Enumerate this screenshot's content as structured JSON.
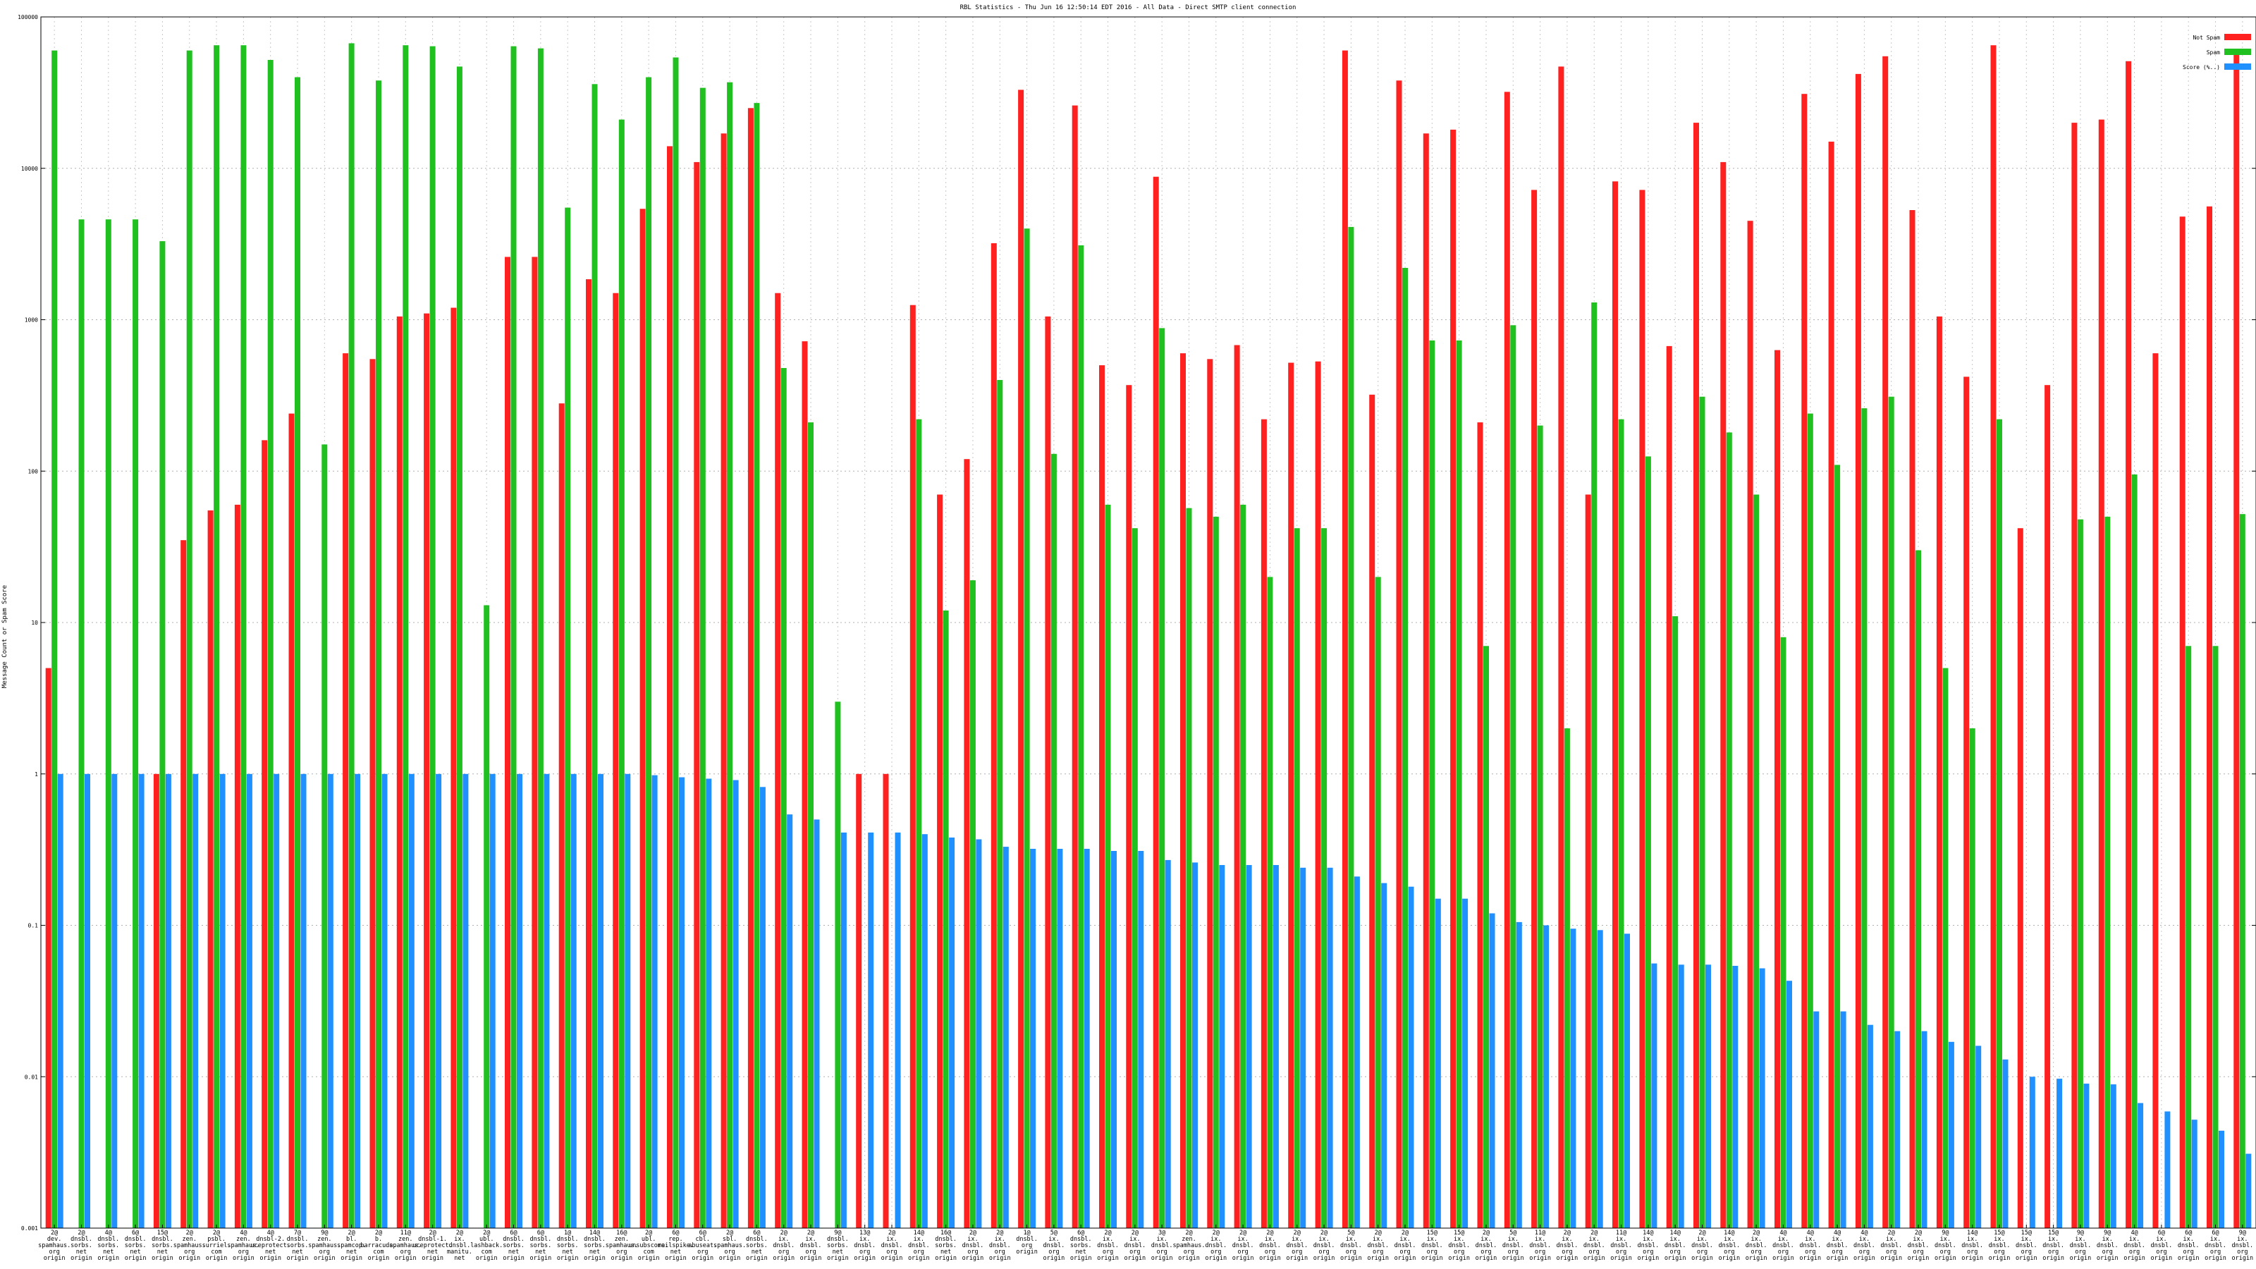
{
  "chart_data": {
    "type": "bar",
    "title": "RBL Statistics - Thu Jun 16 12:50:14 EDT 2016 - All Data - Direct SMTP client connection",
    "ylabel": "Message Count or Spam Score",
    "xlabel": "",
    "yscale": "log",
    "ylim": [
      0.001,
      100000
    ],
    "y_ticks": [
      "0.001",
      "0.01",
      "0.1",
      "1",
      "10",
      "100",
      "1000",
      "10000",
      "100000"
    ],
    "grid": true,
    "legend_position": "top-right",
    "colors": {
      "not_spam": "#ff2020",
      "spam": "#20c020",
      "score": "#2090ff"
    },
    "series": [
      {
        "name": "Not Spam",
        "values": [
          5,
          null,
          null,
          null,
          1,
          35,
          55,
          60,
          160,
          240,
          null,
          600,
          550,
          1050,
          1100,
          1200,
          null,
          2600,
          2600,
          280,
          1850,
          1500,
          5400,
          14000,
          11000,
          17000,
          25000,
          1500,
          720,
          null,
          1,
          1,
          1250,
          70,
          120,
          3200,
          33000,
          1050,
          26000,
          500,
          370,
          8800,
          600,
          550,
          680,
          220,
          520,
          530,
          60000,
          320,
          38000,
          17000,
          18000,
          210,
          32000,
          7200,
          47000,
          70,
          8200,
          7200,
          670,
          20000,
          11000,
          4500,
          630,
          31000,
          15000,
          42000,
          55000,
          5300,
          1050,
          420,
          65000,
          42,
          370,
          20000,
          21000,
          51000,
          600,
          4800,
          5600,
          60000
        ],
        "default_value": 0.001
      },
      {
        "name": "Spam",
        "values": [
          60000,
          4600,
          4600,
          4600,
          3300,
          60000,
          65000,
          65000,
          52000,
          40000,
          150,
          67000,
          38000,
          65000,
          64000,
          47000,
          13,
          64000,
          62000,
          5500,
          36000,
          21000,
          40000,
          54000,
          34000,
          37000,
          27000,
          480,
          210,
          3,
          null,
          null,
          220,
          12,
          19,
          400,
          4000,
          130,
          3100,
          60,
          42,
          880,
          57,
          50,
          60,
          20,
          42,
          42,
          4100,
          20,
          2200,
          730,
          730,
          7,
          920,
          200,
          2,
          1300,
          220,
          125,
          11,
          310,
          180,
          70,
          8,
          240,
          110,
          260,
          310,
          30,
          5,
          2,
          220,
          null,
          null,
          48,
          50,
          95,
          null,
          7,
          7,
          52
        ]
      },
      {
        "name": "Score (%..)",
        "values": [
          1,
          1,
          1,
          1,
          1,
          1,
          1,
          1,
          1,
          1,
          1,
          1,
          1,
          1,
          1,
          1,
          1,
          1,
          1,
          1,
          1,
          1,
          0.98,
          0.95,
          0.93,
          0.91,
          0.82,
          0.54,
          0.5,
          0.41,
          0.41,
          0.41,
          0.4,
          0.38,
          0.37,
          0.33,
          0.32,
          0.32,
          0.32,
          0.31,
          0.31,
          0.27,
          0.26,
          0.25,
          0.25,
          0.25,
          0.24,
          0.24,
          0.21,
          0.19,
          0.18,
          0.15,
          0.15,
          0.12,
          0.105,
          0.1,
          0.095,
          0.093,
          0.088,
          0.056,
          0.055,
          0.055,
          0.054,
          0.052,
          0.043,
          0.027,
          0.027,
          0.022,
          0.02,
          0.02,
          0.017,
          0.016,
          0.013,
          0.01,
          0.0097,
          0.009,
          0.0089,
          0.0067,
          0.0059,
          0.0052,
          0.0044,
          0.0031
        ]
      }
    ],
    "categories": [
      [
        "2@",
        "dev.",
        "spamhaus.",
        "org",
        "origin"
      ],
      [
        "2@",
        "dnsbl.",
        "sorbs.",
        "net",
        "origin"
      ],
      [
        "4@",
        "dnsbl.",
        "sorbs.",
        "net",
        "origin"
      ],
      [
        "6@",
        "dnsbl.",
        "sorbs.",
        "net",
        "origin"
      ],
      [
        "15@",
        "dnsbl.",
        "sorbs.",
        "net",
        "origin"
      ],
      [
        "2@",
        "zen.",
        "spamhaus.",
        "org",
        "origin"
      ],
      [
        "2@",
        "psbl.",
        "surriel.",
        "com",
        "origin"
      ],
      [
        "4@",
        "zen.",
        "spamhaus.",
        "org",
        "origin"
      ],
      [
        "4@",
        "dnsbl-2.",
        "uceprotect.",
        "net",
        "origin"
      ],
      [
        "7@",
        "dnsbl.",
        "sorbs.",
        "net",
        "origin"
      ],
      [
        "9@",
        "zen.",
        "spamhaus.",
        "org",
        "origin"
      ],
      [
        "2@",
        "bl.",
        "spamcop.",
        "net",
        "origin"
      ],
      [
        "2@",
        "b.",
        "barracuda.",
        "com",
        "origin"
      ],
      [
        "11@",
        "zen.",
        "spamhaus.",
        "org",
        "origin"
      ],
      [
        "2@",
        "dnsbl-1.",
        "uceprotect.",
        "net",
        "origin"
      ],
      [
        "2@",
        "ix.",
        "dnsbl.",
        "manitu.",
        "net"
      ],
      [
        "2@",
        "ubl.",
        "lashback.",
        "com",
        "origin"
      ],
      [
        "6@",
        "dnsbl.",
        "sorbs.",
        "net",
        "origin"
      ],
      [
        "6@",
        "dnsbl.",
        "sorbs.",
        "net",
        "origin"
      ],
      [
        "1@",
        "dnsbl.",
        "sorbs.",
        "net",
        "origin"
      ],
      [
        "14@",
        "dnsbl.",
        "sorbs.",
        "net",
        "origin"
      ],
      [
        "16@",
        "zen.",
        "spamhaus.",
        "org",
        "origin"
      ],
      [
        "2@",
        "ubl.",
        "unsubscore.",
        "com",
        "origin"
      ],
      [
        "6@",
        "rep.",
        "mailspike.",
        "net",
        "origin"
      ],
      [
        "6@",
        "cbl.",
        "abuseat.",
        "org",
        "origin"
      ],
      [
        "2@",
        "sbl.",
        "spamhaus.",
        "org",
        "origin"
      ],
      [
        "6@",
        "dnsbl.",
        "sorbs.",
        "net",
        "origin"
      ],
      [
        "2@",
        "ix.",
        "dnsbl.",
        "org",
        "origin"
      ],
      [
        "2@",
        "ix.",
        "dnsbl.",
        "org",
        "origin"
      ],
      [
        "9@",
        "dnsbl.",
        "sorbs.",
        "net",
        "origin"
      ],
      [
        "13@",
        "ix.",
        "dnsbl.",
        "org",
        "origin"
      ],
      [
        "2@",
        "ix.",
        "dnsbl.",
        "org",
        "origin"
      ],
      [
        "14@",
        "ix.",
        "dnsbl.",
        "org",
        "origin"
      ],
      [
        "16@",
        "dnsbl.",
        "sorbs.",
        "net",
        "origin"
      ],
      [
        "2@",
        "ix.",
        "dnsbl.",
        "org",
        "origin"
      ],
      [
        "2@",
        "ix.",
        "dnsbl.",
        "org",
        "origin"
      ],
      [
        "1@",
        "dnsbl.",
        "org",
        "origin",
        ""
      ],
      [
        "5@",
        "ix.",
        "dnsbl.",
        "org",
        "origin"
      ],
      [
        "6@",
        "dnsbl.",
        "sorbs.",
        "net",
        "origin"
      ],
      [
        "2@",
        "ix.",
        "dnsbl.",
        "org",
        "origin"
      ],
      [
        "2@",
        "ix.",
        "dnsbl.",
        "org",
        "origin"
      ],
      [
        "3@",
        "ix.",
        "dnsbl.",
        "org",
        "origin"
      ],
      [
        "2@",
        "zen.",
        "spamhaus.",
        "org",
        "origin"
      ],
      [
        "2@",
        "ix.",
        "dnsbl.",
        "org",
        "origin"
      ],
      [
        "2@",
        "ix.",
        "dnsbl.",
        "org",
        "origin"
      ],
      [
        "2@",
        "ix.",
        "dnsbl.",
        "org",
        "origin"
      ],
      [
        "2@",
        "ix.",
        "dnsbl.",
        "org",
        "origin"
      ],
      [
        "2@",
        "ix.",
        "dnsbl.",
        "org",
        "origin"
      ],
      [
        "5@",
        "ix.",
        "dnsbl.",
        "org",
        "origin"
      ],
      [
        "2@",
        "ix.",
        "dnsbl.",
        "org",
        "origin"
      ],
      [
        "2@",
        "ix.",
        "dnsbl.",
        "org",
        "origin"
      ],
      [
        "15@",
        "ix.",
        "dnsbl.",
        "org",
        "origin"
      ],
      [
        "15@",
        "ix.",
        "dnsbl.",
        "org",
        "origin"
      ],
      [
        "2@",
        "ix.",
        "dnsbl.",
        "org",
        "origin"
      ],
      [
        "5@",
        "ix.",
        "dnsbl.",
        "org",
        "origin"
      ],
      [
        "11@",
        "ix.",
        "dnsbl.",
        "org",
        "origin"
      ],
      [
        "2@",
        "ix.",
        "dnsbl.",
        "org",
        "origin"
      ],
      [
        "2@",
        "ix.",
        "dnsbl.",
        "org",
        "origin"
      ],
      [
        "11@",
        "ix.",
        "dnsbl.",
        "org",
        "origin"
      ],
      [
        "14@",
        "ix.",
        "dnsbl.",
        "org",
        "origin"
      ],
      [
        "14@",
        "ix.",
        "dnsbl.",
        "org",
        "origin"
      ],
      [
        "2@",
        "ix.",
        "dnsbl.",
        "org",
        "origin"
      ],
      [
        "14@",
        "ix.",
        "dnsbl.",
        "org",
        "origin"
      ],
      [
        "2@",
        "ix.",
        "dnsbl.",
        "org",
        "origin"
      ],
      [
        "4@",
        "ix.",
        "dnsbl.",
        "org",
        "origin"
      ],
      [
        "4@",
        "ix.",
        "dnsbl.",
        "org",
        "origin"
      ],
      [
        "4@",
        "ix.",
        "dnsbl.",
        "org",
        "origin"
      ],
      [
        "4@",
        "ix.",
        "dnsbl.",
        "org",
        "origin"
      ],
      [
        "2@",
        "ix.",
        "dnsbl.",
        "org",
        "origin"
      ],
      [
        "2@",
        "ix.",
        "dnsbl.",
        "org",
        "origin"
      ],
      [
        "9@",
        "ix.",
        "dnsbl.",
        "org",
        "origin"
      ],
      [
        "14@",
        "ix.",
        "dnsbl.",
        "org",
        "origin"
      ],
      [
        "15@",
        "ix.",
        "dnsbl.",
        "org",
        "origin"
      ],
      [
        "15@",
        "ix.",
        "dnsbl.",
        "org",
        "origin"
      ],
      [
        "15@",
        "ix.",
        "dnsbl.",
        "org",
        "origin"
      ],
      [
        "9@",
        "ix.",
        "dnsbl.",
        "org",
        "origin"
      ],
      [
        "9@",
        "ix.",
        "dnsbl.",
        "org",
        "origin"
      ],
      [
        "4@",
        "ix.",
        "dnsbl.",
        "org",
        "origin"
      ],
      [
        "6@",
        "ix.",
        "dnsbl.",
        "org",
        "origin"
      ],
      [
        "6@",
        "ix.",
        "dnsbl.",
        "org",
        "origin"
      ],
      [
        "6@",
        "ix.",
        "dnsbl.",
        "org",
        "origin"
      ],
      [
        "9@",
        "ix.",
        "dnsbl.",
        "org",
        "origin"
      ]
    ]
  }
}
